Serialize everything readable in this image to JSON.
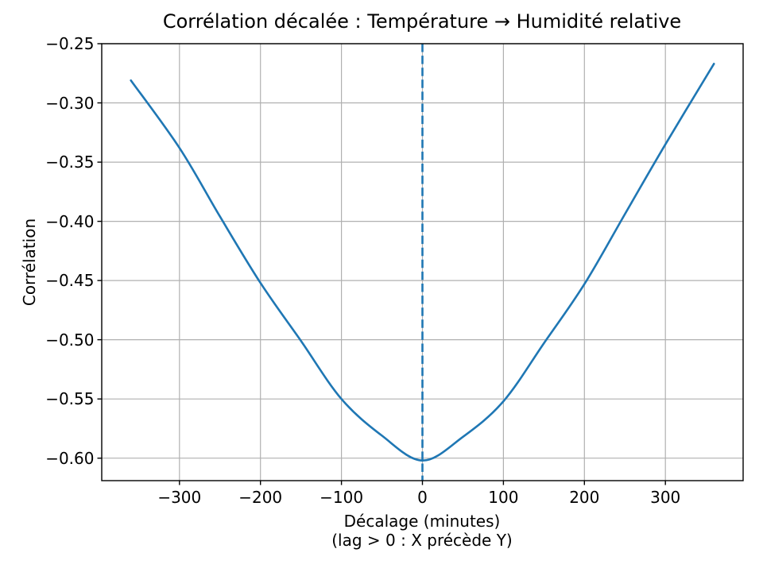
{
  "chart": {
    "title": "Corrélation décalée : Température → Humidité relative",
    "ylabel": "Corrélation",
    "xlabel_line1": "Décalage (minutes)",
    "xlabel_line2": "(lag > 0 : X précède Y)"
  },
  "chart_data": {
    "type": "line",
    "title": "Corrélation décalée : Température → Humidité relative",
    "xlabel": "Décalage (minutes) (lag > 0 : X précède Y)",
    "ylabel": "Corrélation",
    "grid": true,
    "legend": false,
    "xlim": [
      -396,
      396
    ],
    "ylim": [
      -0.619,
      -0.25
    ],
    "xticks": {
      "values": [
        -300,
        -200,
        -100,
        0,
        100,
        200,
        300
      ],
      "labels": [
        "−300",
        "−200",
        "−100",
        "0",
        "100",
        "200",
        "300"
      ]
    },
    "yticks": {
      "values": [
        -0.6,
        -0.55,
        -0.5,
        -0.45,
        -0.4,
        -0.35,
        -0.3,
        -0.25
      ],
      "labels": [
        "−0.60",
        "−0.55",
        "−0.50",
        "−0.45",
        "−0.40",
        "−0.35",
        "−0.30",
        "−0.25"
      ]
    },
    "series": {
      "x": [
        -360,
        -300,
        -250,
        -200,
        -150,
        -100,
        -50,
        0,
        50,
        100,
        150,
        200,
        250,
        300,
        360
      ],
      "y": [
        -0.281,
        -0.338,
        -0.396,
        -0.452,
        -0.501,
        -0.55,
        -0.581,
        -0.602,
        -0.582,
        -0.552,
        -0.503,
        -0.453,
        -0.394,
        -0.335,
        -0.267
      ]
    },
    "reference_line": {
      "type": "vline",
      "x": 0,
      "style": "dashed"
    }
  },
  "colors": {
    "line": "#1f77b4",
    "vline": "#1f77b4",
    "grid": "#b0b0b0",
    "spine": "#000000",
    "background": "#ffffff",
    "text": "#000000"
  },
  "icons": {}
}
